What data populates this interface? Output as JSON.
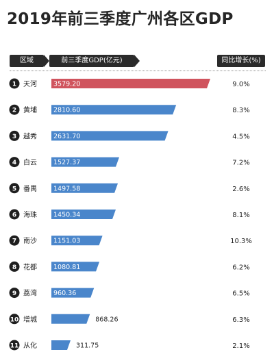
{
  "title": "2019年前三季度广州各区GDP",
  "headers": {
    "region": "区域",
    "gdp": "前三季度GDP(亿元)",
    "growth": "同比增长(%)"
  },
  "colors": {
    "first_bar": "#d0545e",
    "bar": "#4a86cb",
    "bar_light": "#6fa0d8"
  },
  "chart_data": {
    "type": "bar",
    "orientation": "horizontal",
    "title": "2019年前三季度广州各区GDP",
    "ranks": [
      "1",
      "2",
      "3",
      "4",
      "5",
      "6",
      "7",
      "8",
      "9",
      "10",
      "11"
    ],
    "categories": [
      "天河",
      "黄埔",
      "越秀",
      "白云",
      "番禺",
      "海珠",
      "南沙",
      "花都",
      "荔湾",
      "增城",
      "从化"
    ],
    "series": [
      {
        "name": "前三季度GDP(亿元)",
        "values": [
          3579.2,
          2810.6,
          2631.7,
          1527.37,
          1497.58,
          1450.34,
          1151.03,
          1080.81,
          960.36,
          868.26,
          311.75
        ],
        "labels": [
          "3579.20",
          "2810.60",
          "2631.70",
          "1527.37",
          "1497.58",
          "1450.34",
          "1151.03",
          "1080.81",
          "960.36",
          "868.26",
          "311.75"
        ]
      },
      {
        "name": "同比增长(%)",
        "values": [
          9.0,
          8.3,
          4.5,
          7.2,
          2.6,
          8.1,
          10.3,
          6.2,
          6.5,
          6.3,
          2.1
        ],
        "labels": [
          "9.0%",
          "8.3%",
          "4.5%",
          "7.2%",
          "2.6%",
          "8.1%",
          "10.3%",
          "6.2%",
          "6.5%",
          "6.3%",
          "2.1%"
        ]
      }
    ],
    "xlim": [
      0,
      3579.2
    ]
  }
}
